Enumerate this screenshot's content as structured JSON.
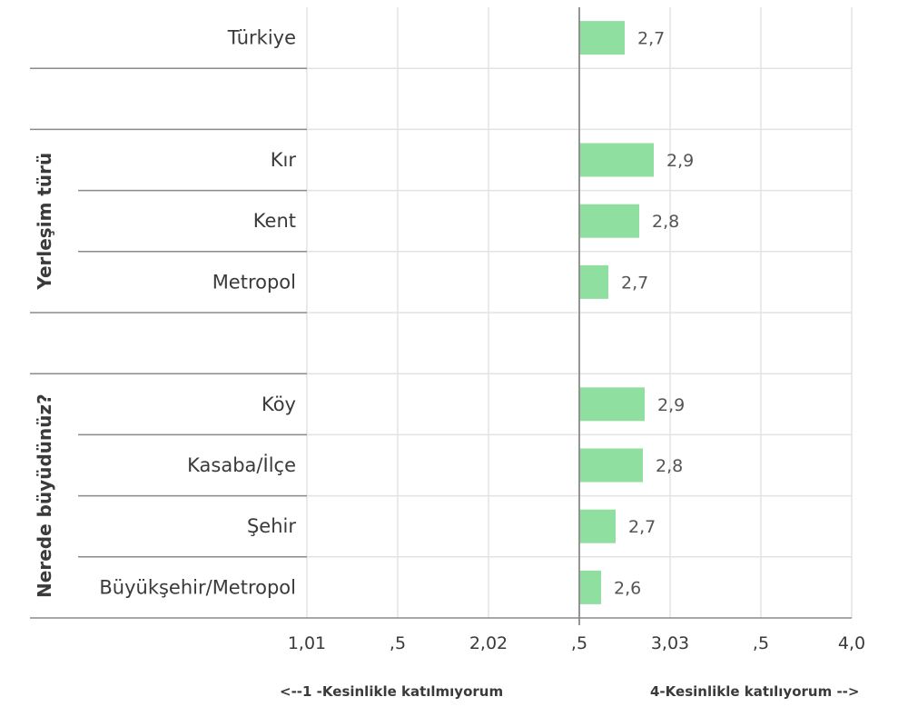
{
  "chart_data": {
    "type": "bar",
    "orientation": "horizontal",
    "bar_color": "#8fdfa0",
    "baseline": 2.5,
    "xlim": [
      1.0,
      4.0
    ],
    "tick_values": [
      1.0,
      1.5,
      2.0,
      2.5,
      3.0,
      3.5,
      4.0
    ],
    "tick_labels": [
      "1,01",
      ",5",
      "2,02",
      ",5",
      "3,03",
      ",5",
      "4,0"
    ],
    "rows": [
      {
        "label": "Türkiye",
        "value": 2.75,
        "value_label": "2,7"
      },
      {
        "label": "",
        "value": null,
        "value_label": ""
      },
      {
        "label": "Kır",
        "value": 2.91,
        "value_label": "2,9"
      },
      {
        "label": "Kent",
        "value": 2.83,
        "value_label": "2,8"
      },
      {
        "label": "Metropol",
        "value": 2.66,
        "value_label": "2,7"
      },
      {
        "label": "",
        "value": null,
        "value_label": ""
      },
      {
        "label": "Köy",
        "value": 2.86,
        "value_label": "2,9"
      },
      {
        "label": "Kasaba/İlçe",
        "value": 2.85,
        "value_label": "2,8"
      },
      {
        "label": "Şehir",
        "value": 2.7,
        "value_label": "2,7"
      },
      {
        "label": "Büyükşehir/Metropol",
        "value": 2.62,
        "value_label": "2,6"
      }
    ],
    "groups": [
      {
        "label": "Yerleşim türü",
        "first_row": 2,
        "last_row": 4
      },
      {
        "label": "Nerede büyüdünüz?",
        "first_row": 6,
        "last_row": 9
      }
    ],
    "footer": {
      "left": "<--1 -Kesinlikle katılmıyorum",
      "right": "4-Kesinlikle katılıyorum -->"
    }
  }
}
